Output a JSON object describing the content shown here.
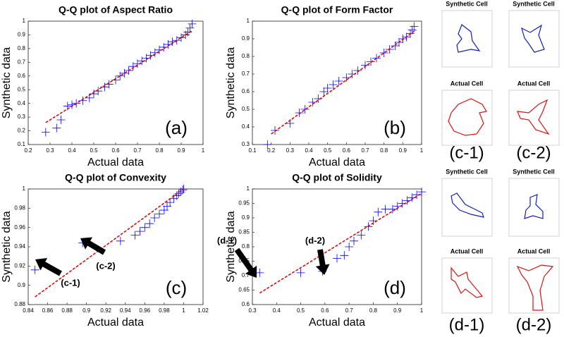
{
  "chart_data": [
    {
      "type": "scatter",
      "title": "Q-Q plot of Aspect Ratio",
      "xlabel": "Actual data",
      "ylabel": "Synthetic data",
      "panel_label": "(a)",
      "xlim": [
        0.2,
        1
      ],
      "ylim": [
        0.1,
        1
      ],
      "xticks": [
        0.2,
        0.3,
        0.4,
        0.5,
        0.6,
        0.7,
        0.8,
        0.9,
        1
      ],
      "yticks": [
        0.1,
        0.2,
        0.3,
        0.4,
        0.5,
        0.6,
        0.7,
        0.8,
        0.9,
        1
      ],
      "series": [
        {
          "color": "#0000ff",
          "x": [
            0.28,
            0.33,
            0.35,
            0.38,
            0.4,
            0.42,
            0.45,
            0.48,
            0.5,
            0.52,
            0.55,
            0.57,
            0.6,
            0.62,
            0.64,
            0.66,
            0.68,
            0.7,
            0.72,
            0.74,
            0.76,
            0.78,
            0.8,
            0.82,
            0.84,
            0.86,
            0.88,
            0.9,
            0.92,
            0.93,
            0.94,
            0.95
          ],
          "values": [
            0.19,
            0.22,
            0.28,
            0.38,
            0.39,
            0.4,
            0.42,
            0.44,
            0.47,
            0.49,
            0.52,
            0.54,
            0.57,
            0.6,
            0.62,
            0.64,
            0.67,
            0.69,
            0.71,
            0.73,
            0.75,
            0.77,
            0.79,
            0.81,
            0.83,
            0.85,
            0.86,
            0.88,
            0.9,
            0.92,
            0.95,
            0.98
          ]
        }
      ],
      "reference_line": {
        "color": "#e00000",
        "x": [
          0.28,
          0.95
        ],
        "values": [
          0.26,
          0.93
        ]
      }
    },
    {
      "type": "scatter",
      "title": "Q-Q plot of Form Factor",
      "xlabel": "Actual data",
      "ylabel": "Synthetic data",
      "panel_label": "(b)",
      "xlim": [
        0.1,
        1
      ],
      "ylim": [
        0.3,
        1
      ],
      "xticks": [
        0.1,
        0.2,
        0.3,
        0.4,
        0.5,
        0.6,
        0.7,
        0.8,
        0.9,
        1
      ],
      "yticks": [
        0.3,
        0.4,
        0.5,
        0.6,
        0.7,
        0.8,
        0.9,
        1
      ],
      "series": [
        {
          "color": "#0000ff",
          "x": [
            0.18,
            0.22,
            0.3,
            0.35,
            0.38,
            0.42,
            0.45,
            0.48,
            0.5,
            0.53,
            0.56,
            0.6,
            0.63,
            0.66,
            0.7,
            0.73,
            0.76,
            0.8,
            0.83,
            0.86,
            0.88,
            0.9,
            0.92,
            0.94,
            0.95,
            0.96
          ],
          "values": [
            0.3,
            0.38,
            0.42,
            0.48,
            0.5,
            0.54,
            0.56,
            0.6,
            0.62,
            0.64,
            0.66,
            0.68,
            0.7,
            0.72,
            0.75,
            0.77,
            0.79,
            0.82,
            0.84,
            0.86,
            0.88,
            0.9,
            0.91,
            0.93,
            0.95,
            0.97
          ]
        }
      ],
      "reference_line": {
        "color": "#e00000",
        "x": [
          0.2,
          0.97
        ],
        "values": [
          0.36,
          0.95
        ]
      }
    },
    {
      "type": "scatter",
      "title": "Q-Q plot of Convexity",
      "xlabel": "Actual data",
      "ylabel": "Synthetic data",
      "panel_label": "(c)",
      "xlim": [
        0.84,
        1.02
      ],
      "ylim": [
        0.88,
        1
      ],
      "xticks": [
        0.84,
        0.86,
        0.88,
        0.9,
        0.92,
        0.94,
        0.96,
        0.98,
        1,
        1.02
      ],
      "yticks": [
        0.88,
        0.9,
        0.92,
        0.94,
        0.96,
        0.98,
        1
      ],
      "series": [
        {
          "color": "#0000ff",
          "x": [
            0.847,
            0.896,
            0.935,
            0.95,
            0.955,
            0.96,
            0.965,
            0.97,
            0.975,
            0.98,
            0.983,
            0.986,
            0.99,
            0.993,
            0.995,
            0.997,
            0.999,
            1
          ],
          "values": [
            0.916,
            0.944,
            0.946,
            0.952,
            0.956,
            0.96,
            0.964,
            0.97,
            0.974,
            0.978,
            0.982,
            0.986,
            0.99,
            0.993,
            0.995,
            0.997,
            0.999,
            1
          ]
        }
      ],
      "reference_line": {
        "color": "#e00000",
        "x": [
          0.847,
          1
        ],
        "values": [
          0.888,
          1
        ]
      },
      "annotations": [
        "(c-1)",
        "(c-2)"
      ]
    },
    {
      "type": "scatter",
      "title": "Q-Q plot of Solidity",
      "xlabel": "Actual data",
      "ylabel": "Synthetic data",
      "panel_label": "(d)",
      "xlim": [
        0.3,
        1
      ],
      "ylim": [
        0.6,
        1
      ],
      "xticks": [
        0.3,
        0.4,
        0.5,
        0.6,
        0.7,
        0.8,
        0.9,
        1
      ],
      "yticks": [
        0.6,
        0.65,
        0.7,
        0.75,
        0.8,
        0.85,
        0.9,
        0.95,
        1
      ],
      "series": [
        {
          "color": "#0000ff",
          "x": [
            0.33,
            0.5,
            0.59,
            0.65,
            0.68,
            0.7,
            0.72,
            0.75,
            0.78,
            0.8,
            0.82,
            0.85,
            0.88,
            0.9,
            0.92,
            0.94,
            0.96,
            0.98,
            1
          ],
          "values": [
            0.71,
            0.71,
            0.715,
            0.76,
            0.77,
            0.8,
            0.82,
            0.84,
            0.87,
            0.89,
            0.92,
            0.93,
            0.93,
            0.94,
            0.95,
            0.96,
            0.97,
            0.98,
            0.99
          ]
        }
      ],
      "reference_line": {
        "color": "#e00000",
        "x": [
          0.33,
          1
        ],
        "values": [
          0.64,
          0.985
        ]
      },
      "annotations": [
        "(d-1)",
        "(d-2)"
      ]
    }
  ],
  "cell_groups": [
    {
      "synthetic": "Synthetic Cell",
      "actual": "Actual Cell",
      "label": "(c-1)"
    },
    {
      "synthetic": "Synthetic Cell",
      "actual": "Actual Cell",
      "label": "(c-2)"
    },
    {
      "synthetic": "Synthetic Cell",
      "actual": "Actual Cell",
      "label": "(d-1)"
    },
    {
      "synthetic": "Synthetic Cell",
      "actual": "Actual Cell",
      "label": "(d-2)"
    }
  ]
}
